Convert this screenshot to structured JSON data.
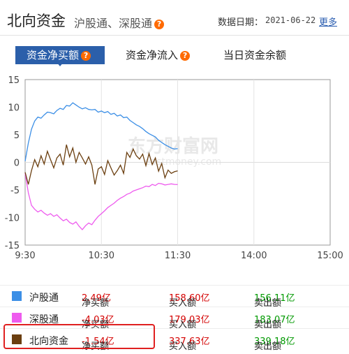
{
  "header": {
    "title": "北向资金",
    "subtitle": "沪股通、深股通",
    "help": "?",
    "date_label": "数据日期：",
    "date": "2021-06-22",
    "more": "更多"
  },
  "tabs": [
    {
      "label": "资金净买额",
      "help": "?"
    },
    {
      "label": "资金净流入",
      "help": "?"
    },
    {
      "label": "当日资金余额"
    }
  ],
  "watermark": "东方财富网",
  "watermark_url": "eastmoney.com",
  "colors": {
    "hgt": "#3c8fe6",
    "sgt": "#ee5bee",
    "north": "#6b3f10",
    "positive": "#d40000",
    "negative": "#009900"
  },
  "chart_data": {
    "type": "line",
    "x_ticks": [
      "9:30",
      "10:30",
      "11:30",
      "14:00",
      "15:00"
    ],
    "y_ticks": [
      15,
      10,
      5,
      0,
      -5,
      -10,
      -15
    ],
    "ylim": [
      -15,
      15
    ],
    "series": [
      {
        "name": "沪股通",
        "color": "#3c8fe6",
        "values": [
          0.2,
          3.5,
          6.0,
          7.5,
          8.2,
          8.0,
          8.6,
          9.1,
          9.0,
          8.8,
          9.4,
          9.8,
          9.6,
          10.3,
          10.2,
          10.8,
          10.4,
          10.0,
          9.7,
          9.9,
          9.6,
          9.5,
          9.6,
          9.1,
          9.3,
          9.0,
          9.2,
          8.7,
          8.9,
          8.4,
          8.6,
          8.1,
          8.2,
          7.6,
          7.2,
          6.8,
          6.5,
          6.1,
          5.6,
          5.2,
          4.9,
          4.6,
          4.0,
          3.6,
          3.2,
          2.9,
          2.6,
          2.4,
          2.49
        ]
      },
      {
        "name": "深股通",
        "color": "#ee5bee",
        "values": [
          -2.0,
          -5.5,
          -7.8,
          -8.5,
          -9.0,
          -8.7,
          -9.2,
          -9.6,
          -9.3,
          -9.8,
          -9.5,
          -10.1,
          -10.6,
          -10.3,
          -10.9,
          -11.2,
          -10.8,
          -11.6,
          -12.2,
          -11.5,
          -11.0,
          -11.3,
          -10.5,
          -9.8,
          -9.3,
          -8.8,
          -8.2,
          -7.8,
          -7.4,
          -6.9,
          -6.5,
          -6.2,
          -5.8,
          -5.6,
          -5.2,
          -5.0,
          -4.8,
          -4.6,
          -4.3,
          -4.4,
          -4.0,
          -4.2,
          -3.8,
          -3.9,
          -4.1,
          -4.0,
          -3.9,
          -4.0,
          -4.03
        ]
      },
      {
        "name": "北向资金",
        "color": "#6b3f10",
        "values": [
          -1.8,
          -4.0,
          -1.5,
          0.5,
          -0.8,
          1.2,
          -0.3,
          2.0,
          0.5,
          -1.0,
          0.8,
          1.5,
          -0.5,
          3.2,
          1.0,
          2.6,
          0.0,
          1.8,
          0.8,
          -0.3,
          1.0,
          -0.5,
          -4.0,
          -1.2,
          -0.8,
          -2.2,
          0.3,
          -1.0,
          -2.3,
          -1.5,
          -0.5,
          -2.0,
          1.8,
          0.9,
          2.4,
          1.2,
          0.6,
          1.5,
          -0.6,
          1.6,
          -0.4,
          0.8,
          -1.6,
          -0.2,
          -2.8,
          -1.4,
          -2.0,
          -1.7,
          -1.54
        ]
      }
    ]
  },
  "legend": [
    {
      "name": "沪股通",
      "color": "#3c8fe6",
      "net_label": "净买额",
      "net": "2.49亿",
      "buy_label": "买入额",
      "buy": "158.60亿",
      "sell_label": "卖出额",
      "sell": "156.11亿"
    },
    {
      "name": "深股通",
      "color": "#ee5bee",
      "net_label": "净买额",
      "net": "-4.03亿",
      "buy_label": "买入额",
      "buy": "179.03亿",
      "sell_label": "卖出额",
      "sell": "183.07亿"
    },
    {
      "name": "北向资金",
      "color": "#6b3f10",
      "net_label": "净买额",
      "net": "-1.54亿",
      "buy_label": "买入额",
      "buy": "337.63亿",
      "sell_label": "卖出额",
      "sell": "339.18亿"
    }
  ]
}
